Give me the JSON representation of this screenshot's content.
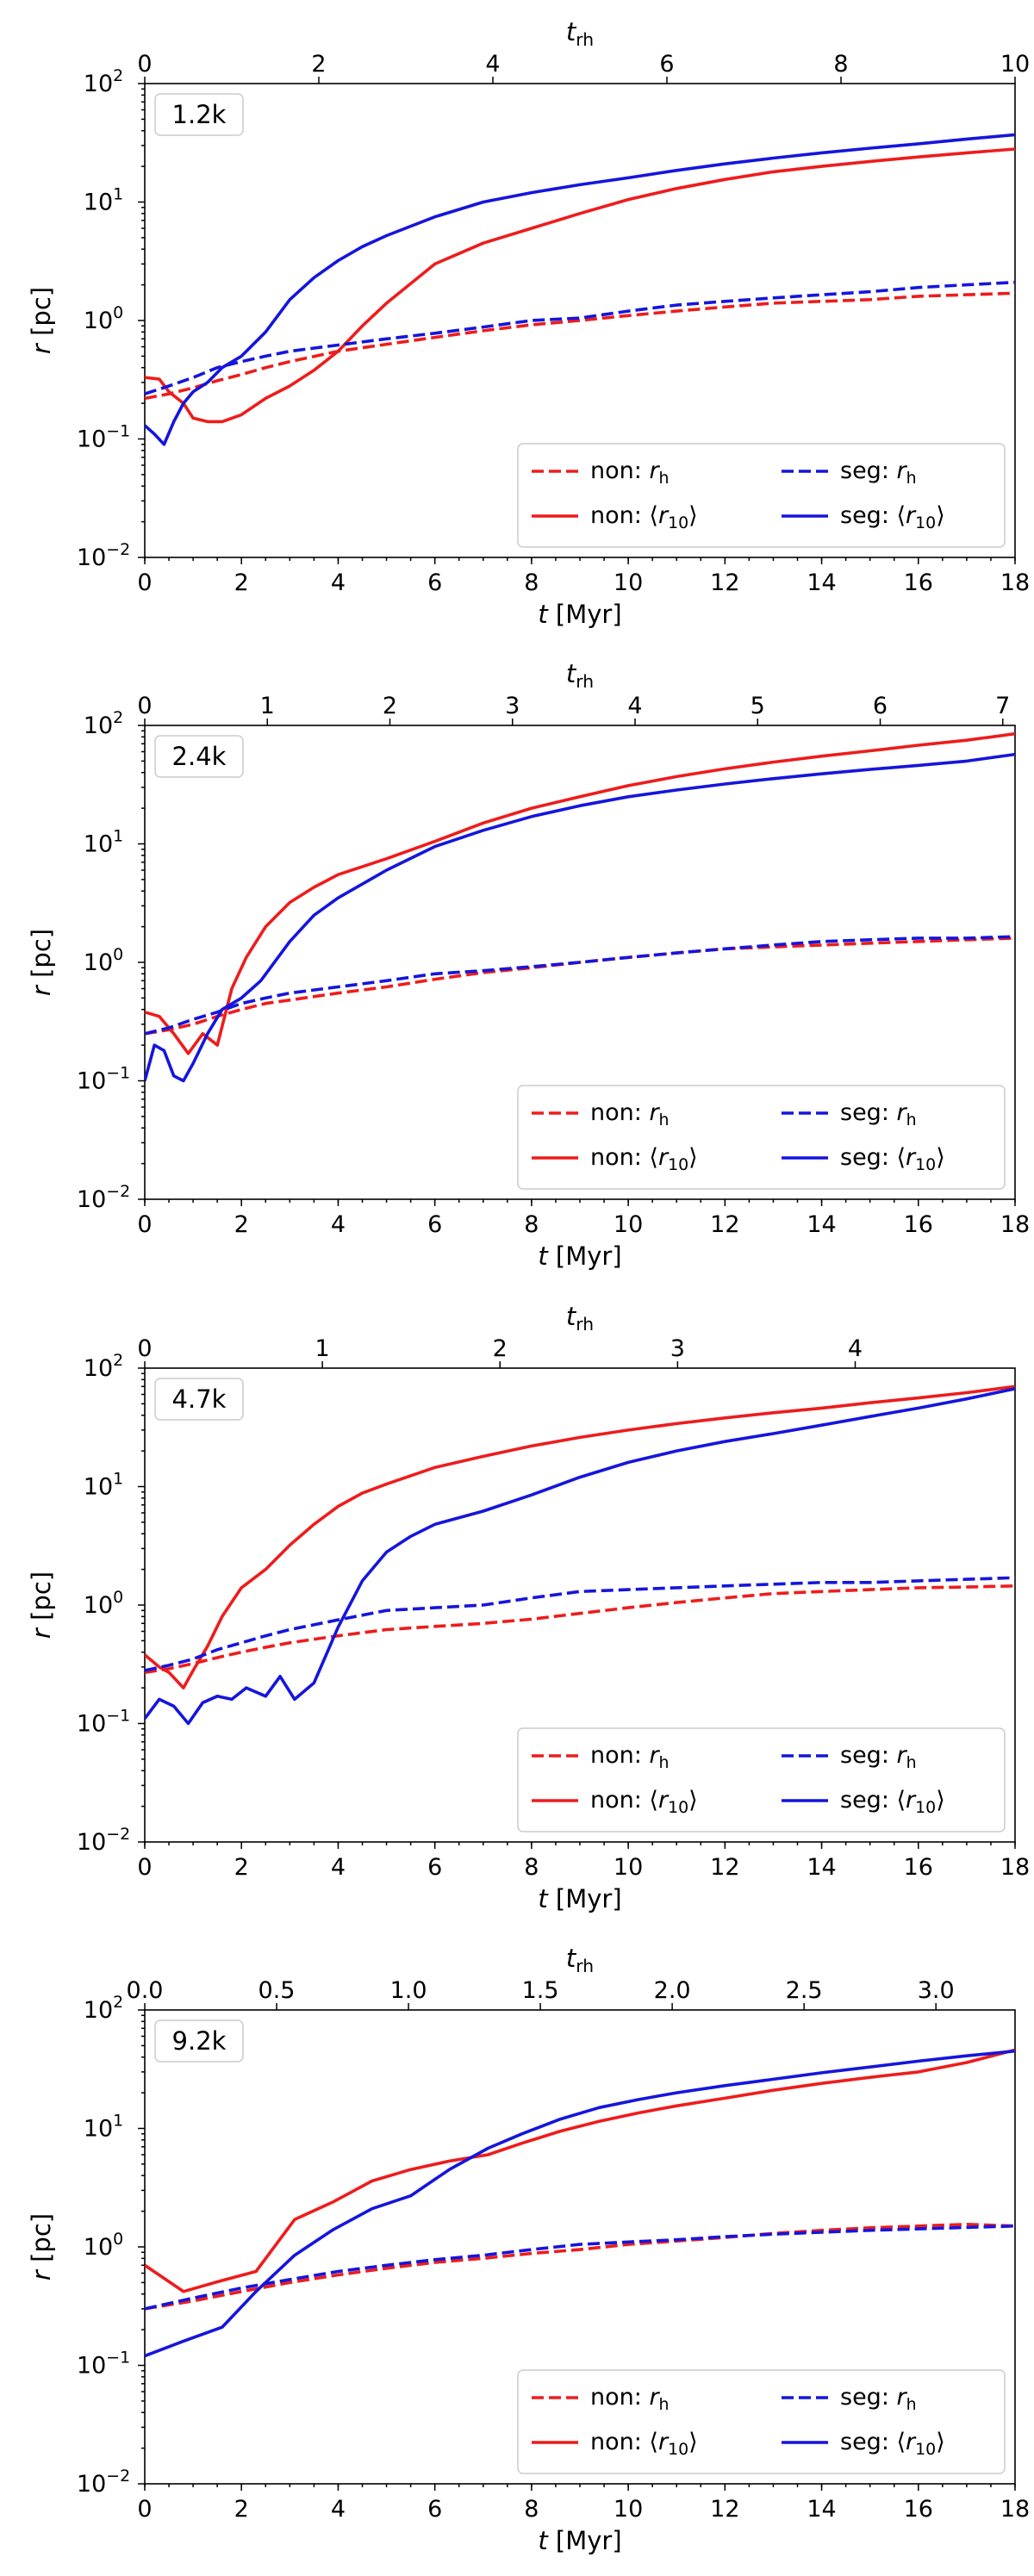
{
  "colors": {
    "non": "#ee1c1c",
    "seg": "#1515dd"
  },
  "chart_data": [
    {
      "type": "line",
      "panel_label": "1.2k",
      "xlabel": "t [Myr]",
      "ylabel": "r [pc]",
      "top_xlabel": "t_rh",
      "xlim": [
        0,
        18
      ],
      "ylim": [
        0.01,
        100
      ],
      "y_scale": "log",
      "top_xlim": [
        0,
        10
      ],
      "xticks": [
        "0",
        "2",
        "4",
        "6",
        "8",
        "10",
        "12",
        "14",
        "16",
        "18"
      ],
      "top_xticks": [
        "0",
        "2",
        "4",
        "6",
        "8",
        "10"
      ],
      "legend": "lower-right",
      "series": [
        {
          "name": "non: r_h",
          "style": "dashed",
          "color": "#ee1c1c",
          "x": [
            0,
            0.5,
            1,
            1.5,
            2,
            2.5,
            3,
            4,
            5,
            6,
            7,
            8,
            9,
            10,
            11,
            12,
            13,
            14,
            15,
            16,
            17,
            18
          ],
          "y": [
            0.22,
            0.24,
            0.27,
            0.31,
            0.35,
            0.4,
            0.45,
            0.55,
            0.63,
            0.72,
            0.82,
            0.92,
            1.0,
            1.1,
            1.2,
            1.3,
            1.4,
            1.45,
            1.5,
            1.6,
            1.65,
            1.7
          ]
        },
        {
          "name": "non: ⟨r10⟩",
          "style": "solid",
          "color": "#ee1c1c",
          "x": [
            0,
            0.3,
            0.5,
            0.8,
            1,
            1.3,
            1.6,
            2,
            2.5,
            3,
            3.5,
            4,
            4.5,
            5,
            6,
            7,
            8,
            9,
            10,
            11,
            12,
            13,
            14,
            15,
            16,
            17,
            18
          ],
          "y": [
            0.33,
            0.32,
            0.25,
            0.2,
            0.15,
            0.14,
            0.14,
            0.16,
            0.22,
            0.28,
            0.38,
            0.55,
            0.9,
            1.4,
            3.0,
            4.5,
            6.0,
            8.0,
            10.5,
            13.0,
            15.5,
            18.0,
            20.0,
            22.0,
            24.0,
            26.0,
            28.0
          ]
        },
        {
          "name": "seg: r_h",
          "style": "dashed",
          "color": "#1515dd",
          "x": [
            0,
            0.5,
            1,
            1.5,
            2,
            2.5,
            3,
            4,
            5,
            6,
            7,
            8,
            9,
            10,
            11,
            12,
            13,
            14,
            15,
            16,
            17,
            18
          ],
          "y": [
            0.24,
            0.28,
            0.33,
            0.4,
            0.45,
            0.5,
            0.55,
            0.62,
            0.7,
            0.78,
            0.88,
            1.0,
            1.05,
            1.2,
            1.35,
            1.45,
            1.55,
            1.65,
            1.75,
            1.9,
            2.0,
            2.1
          ]
        },
        {
          "name": "seg: ⟨r10⟩",
          "style": "solid",
          "color": "#1515dd",
          "x": [
            0,
            0.2,
            0.4,
            0.6,
            0.8,
            1,
            1.3,
            1.6,
            2,
            2.5,
            3,
            3.5,
            4,
            4.5,
            5,
            6,
            7,
            8,
            9,
            10,
            11,
            12,
            13,
            14,
            15,
            16,
            17,
            18
          ],
          "y": [
            0.13,
            0.11,
            0.09,
            0.14,
            0.2,
            0.25,
            0.3,
            0.4,
            0.5,
            0.8,
            1.5,
            2.3,
            3.2,
            4.2,
            5.2,
            7.5,
            10.0,
            12.0,
            14.0,
            16.0,
            18.5,
            21.0,
            23.5,
            26.0,
            28.5,
            31.0,
            34.0,
            37.0
          ]
        }
      ]
    },
    {
      "type": "line",
      "panel_label": "2.4k",
      "xlabel": "t [Myr]",
      "ylabel": "r [pc]",
      "top_xlabel": "t_rh",
      "xlim": [
        0,
        18
      ],
      "ylim": [
        0.01,
        100
      ],
      "y_scale": "log",
      "top_xlim": [
        0,
        7.1
      ],
      "xticks": [
        "0",
        "2",
        "4",
        "6",
        "8",
        "10",
        "12",
        "14",
        "16",
        "18"
      ],
      "top_xticks": [
        "0",
        "1",
        "2",
        "3",
        "4",
        "5",
        "6",
        "7"
      ],
      "legend": "lower-right",
      "series": [
        {
          "name": "non: r_h",
          "style": "dashed",
          "color": "#ee1c1c",
          "x": [
            0,
            0.5,
            1,
            1.5,
            2,
            2.5,
            3,
            4,
            5,
            6,
            7,
            8,
            9,
            10,
            11,
            12,
            13,
            14,
            15,
            16,
            17,
            18
          ],
          "y": [
            0.25,
            0.27,
            0.3,
            0.35,
            0.4,
            0.45,
            0.48,
            0.55,
            0.62,
            0.72,
            0.82,
            0.9,
            1.0,
            1.1,
            1.2,
            1.3,
            1.35,
            1.4,
            1.45,
            1.5,
            1.55,
            1.6
          ]
        },
        {
          "name": "non: ⟨r10⟩",
          "style": "solid",
          "color": "#ee1c1c",
          "x": [
            0,
            0.3,
            0.6,
            0.9,
            1.2,
            1.5,
            1.8,
            2.1,
            2.5,
            3,
            3.5,
            4,
            5,
            6,
            7,
            8,
            9,
            10,
            11,
            12,
            13,
            14,
            15,
            16,
            17,
            18
          ],
          "y": [
            0.38,
            0.35,
            0.25,
            0.17,
            0.25,
            0.2,
            0.6,
            1.1,
            2.0,
            3.2,
            4.3,
            5.5,
            7.5,
            10.5,
            15.0,
            20.0,
            25.0,
            31.0,
            37.0,
            43.0,
            49.0,
            55.0,
            61.0,
            68.0,
            75.0,
            85.0
          ]
        },
        {
          "name": "seg: r_h",
          "style": "dashed",
          "color": "#1515dd",
          "x": [
            0,
            0.5,
            1,
            1.5,
            2,
            2.5,
            3,
            4,
            5,
            6,
            7,
            8,
            9,
            10,
            11,
            12,
            13,
            14,
            15,
            16,
            17,
            18
          ],
          "y": [
            0.25,
            0.28,
            0.33,
            0.38,
            0.45,
            0.5,
            0.55,
            0.62,
            0.7,
            0.8,
            0.85,
            0.92,
            1.0,
            1.1,
            1.2,
            1.3,
            1.4,
            1.5,
            1.55,
            1.6,
            1.6,
            1.65
          ]
        },
        {
          "name": "seg: ⟨r10⟩",
          "style": "solid",
          "color": "#1515dd",
          "x": [
            0,
            0.2,
            0.4,
            0.6,
            0.8,
            1,
            1.3,
            1.6,
            2,
            2.4,
            3,
            3.5,
            4,
            5,
            6,
            7,
            8,
            9,
            10,
            11,
            12,
            13,
            14,
            15,
            16,
            17,
            18
          ],
          "y": [
            0.1,
            0.2,
            0.18,
            0.11,
            0.1,
            0.14,
            0.25,
            0.4,
            0.5,
            0.7,
            1.5,
            2.5,
            3.5,
            6.0,
            9.5,
            13.0,
            17.0,
            21.0,
            25.0,
            28.5,
            32.0,
            35.5,
            39.0,
            42.5,
            46.0,
            50.0,
            57.0
          ]
        }
      ]
    },
    {
      "type": "line",
      "panel_label": "4.7k",
      "xlabel": "t [Myr]",
      "ylabel": "r [pc]",
      "top_xlabel": "t_rh",
      "xlim": [
        0,
        18
      ],
      "ylim": [
        0.01,
        100
      ],
      "y_scale": "log",
      "top_xlim": [
        0,
        4.9
      ],
      "xticks": [
        "0",
        "2",
        "4",
        "6",
        "8",
        "10",
        "12",
        "14",
        "16",
        "18"
      ],
      "top_xticks": [
        "0",
        "1",
        "2",
        "3",
        "4"
      ],
      "legend": "lower-right",
      "series": [
        {
          "name": "non: r_h",
          "style": "dashed",
          "color": "#ee1c1c",
          "x": [
            0,
            0.5,
            1,
            1.5,
            2,
            2.5,
            3,
            4,
            5,
            6,
            7,
            8,
            9,
            10,
            11,
            12,
            13,
            14,
            15,
            16,
            17,
            18
          ],
          "y": [
            0.27,
            0.29,
            0.32,
            0.36,
            0.4,
            0.44,
            0.48,
            0.55,
            0.62,
            0.66,
            0.7,
            0.76,
            0.85,
            0.95,
            1.05,
            1.15,
            1.25,
            1.3,
            1.35,
            1.4,
            1.42,
            1.45
          ]
        },
        {
          "name": "non: ⟨r10⟩",
          "style": "solid",
          "color": "#ee1c1c",
          "x": [
            0,
            0.3,
            0.5,
            0.8,
            1,
            1.3,
            1.6,
            2,
            2.5,
            3,
            3.5,
            4,
            4.5,
            5,
            6,
            7,
            8,
            9,
            10,
            11,
            12,
            13,
            14,
            15,
            16,
            17,
            18
          ],
          "y": [
            0.38,
            0.3,
            0.27,
            0.2,
            0.28,
            0.45,
            0.8,
            1.4,
            2.0,
            3.2,
            4.8,
            6.8,
            8.8,
            10.5,
            14.5,
            18.0,
            22.0,
            26.0,
            30.0,
            34.0,
            38.0,
            42.0,
            46.0,
            51.0,
            56.0,
            62.0,
            70.0
          ]
        },
        {
          "name": "seg: r_h",
          "style": "dashed",
          "color": "#1515dd",
          "x": [
            0,
            0.5,
            1,
            1.5,
            2,
            2.5,
            3,
            4,
            5,
            6,
            7,
            8,
            9,
            10,
            11,
            12,
            13,
            14,
            15,
            16,
            17,
            18
          ],
          "y": [
            0.28,
            0.31,
            0.35,
            0.42,
            0.48,
            0.55,
            0.62,
            0.75,
            0.9,
            0.95,
            1.0,
            1.15,
            1.3,
            1.35,
            1.4,
            1.45,
            1.5,
            1.55,
            1.55,
            1.6,
            1.65,
            1.7
          ]
        },
        {
          "name": "seg: ⟨r10⟩",
          "style": "solid",
          "color": "#1515dd",
          "x": [
            0,
            0.3,
            0.6,
            0.9,
            1.2,
            1.5,
            1.8,
            2.1,
            2.5,
            2.8,
            3.1,
            3.5,
            4,
            4.5,
            5,
            5.5,
            6,
            7,
            8,
            9,
            10,
            11,
            12,
            13,
            14,
            15,
            16,
            17,
            18
          ],
          "y": [
            0.11,
            0.16,
            0.14,
            0.1,
            0.15,
            0.17,
            0.16,
            0.2,
            0.17,
            0.25,
            0.16,
            0.22,
            0.65,
            1.6,
            2.8,
            3.8,
            4.8,
            6.2,
            8.5,
            12.0,
            16.0,
            20.0,
            24.0,
            28.0,
            33.0,
            39.0,
            46.0,
            55.0,
            67.0
          ]
        }
      ]
    },
    {
      "type": "line",
      "panel_label": "9.2k",
      "xlabel": "t [Myr]",
      "ylabel": "r [pc]",
      "top_xlabel": "t_rh",
      "xlim": [
        0,
        18
      ],
      "ylim": [
        0.01,
        100
      ],
      "y_scale": "log",
      "top_xlim": [
        0,
        3.3
      ],
      "xticks": [
        "0",
        "2",
        "4",
        "6",
        "8",
        "10",
        "12",
        "14",
        "16",
        "18"
      ],
      "top_xticks": [
        "0.0",
        "0.5",
        "1.0",
        "1.5",
        "2.0",
        "2.5",
        "3.0"
      ],
      "legend": "lower-right",
      "series": [
        {
          "name": "non: r_h",
          "style": "dashed",
          "color": "#ee1c1c",
          "x": [
            0,
            1,
            2,
            3,
            4,
            5,
            6,
            7,
            8,
            9,
            10,
            11,
            12,
            13,
            14,
            15,
            16,
            17,
            18
          ],
          "y": [
            0.3,
            0.35,
            0.42,
            0.5,
            0.58,
            0.66,
            0.74,
            0.8,
            0.88,
            0.95,
            1.05,
            1.12,
            1.2,
            1.3,
            1.38,
            1.45,
            1.5,
            1.55,
            1.5
          ]
        },
        {
          "name": "non: ⟨r10⟩",
          "style": "solid",
          "color": "#ee1c1c",
          "x": [
            0,
            0.8,
            1.6,
            2.3,
            3.1,
            3.9,
            4.7,
            5.5,
            6.3,
            7.1,
            7.8,
            8.6,
            9.4,
            10.2,
            11,
            12,
            13,
            14,
            15,
            16,
            17,
            18
          ],
          "y": [
            0.7,
            0.42,
            0.52,
            0.62,
            1.7,
            2.4,
            3.6,
            4.5,
            5.3,
            6.0,
            7.5,
            9.5,
            11.5,
            13.5,
            15.5,
            18.0,
            21.0,
            24.0,
            27.0,
            30.0,
            36.0,
            46.0
          ]
        },
        {
          "name": "seg: r_h",
          "style": "dashed",
          "color": "#1515dd",
          "x": [
            0,
            1,
            2,
            3,
            4,
            5,
            6,
            7,
            8,
            9,
            10,
            11,
            12,
            13,
            14,
            15,
            16,
            17,
            18
          ],
          "y": [
            0.3,
            0.37,
            0.45,
            0.53,
            0.62,
            0.7,
            0.78,
            0.85,
            0.95,
            1.05,
            1.1,
            1.15,
            1.22,
            1.28,
            1.33,
            1.38,
            1.42,
            1.46,
            1.5
          ]
        },
        {
          "name": "seg: ⟨r10⟩",
          "style": "solid",
          "color": "#1515dd",
          "x": [
            0,
            0.8,
            1.6,
            2.3,
            3.1,
            3.9,
            4.7,
            5.5,
            6.3,
            7.1,
            7.8,
            8.6,
            9.4,
            10.2,
            11,
            12,
            13,
            14,
            15,
            16,
            17,
            18
          ],
          "y": [
            0.12,
            0.16,
            0.21,
            0.42,
            0.85,
            1.4,
            2.1,
            2.7,
            4.5,
            6.8,
            9.0,
            12.0,
            15.0,
            17.5,
            20.0,
            23.0,
            26.0,
            29.5,
            33.0,
            37.0,
            41.0,
            45.0
          ]
        }
      ]
    }
  ]
}
